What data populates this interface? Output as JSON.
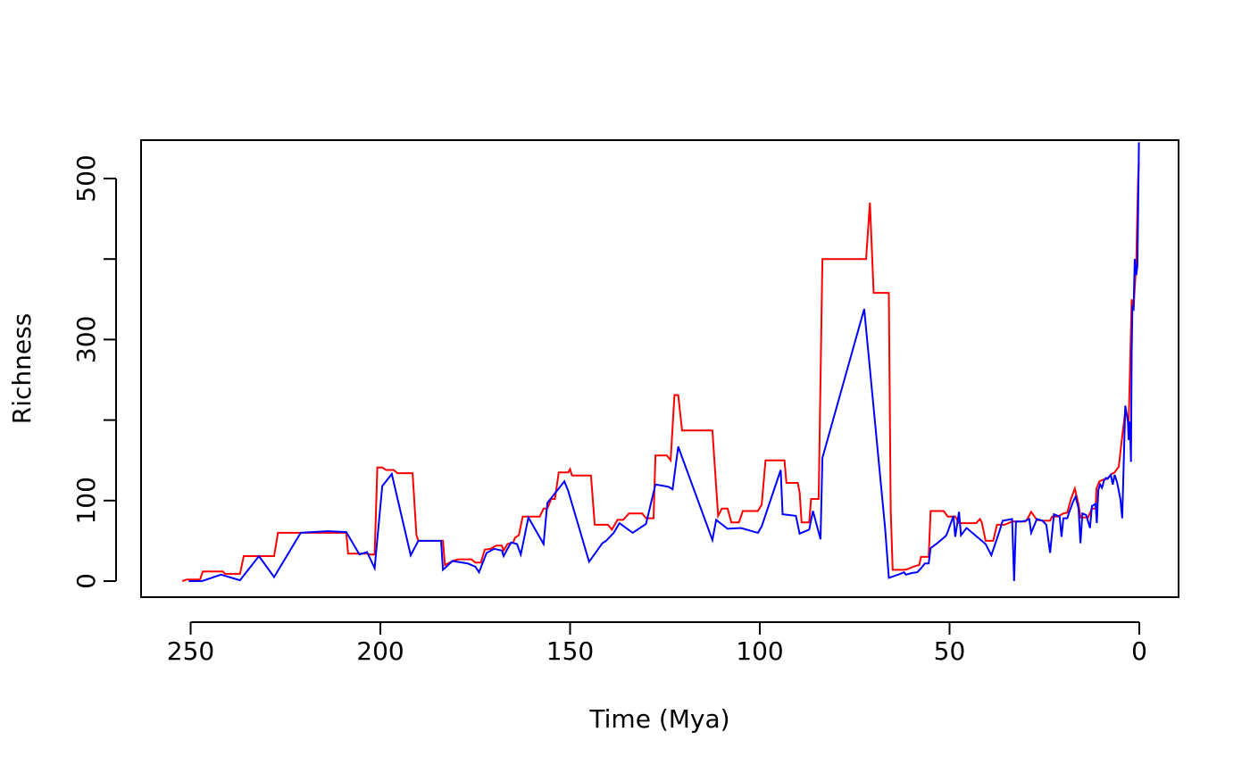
{
  "chart_data": {
    "type": "line",
    "title": "",
    "xlabel": "Time (Mya)",
    "ylabel": "Richness",
    "xlim": [
      252.2,
      0
    ],
    "ylim": [
      0,
      545
    ],
    "x_ticks": [
      250,
      200,
      150,
      100,
      50,
      0
    ],
    "x_tick_labels": [
      "250",
      "200",
      "150",
      "100",
      "50",
      "0"
    ],
    "y_ticks": [
      0,
      100,
      200,
      300,
      400,
      500
    ],
    "y_tick_labels": [
      "0",
      "100",
      "",
      "300",
      "",
      "500"
    ],
    "grid": false,
    "legend": "none",
    "colors": {
      "red": "#ff0000",
      "blue": "#0000ff",
      "axis": "#000000"
    },
    "series": [
      {
        "color": "#ff0000",
        "points": [
          [
            252.2,
            0
          ],
          [
            251,
            2
          ],
          [
            247.5,
            2
          ],
          [
            246.8,
            12
          ],
          [
            241.5,
            12
          ],
          [
            241,
            9
          ],
          [
            237,
            9
          ],
          [
            236,
            31
          ],
          [
            228,
            31
          ],
          [
            227,
            60
          ],
          [
            209,
            60
          ],
          [
            208.5,
            34
          ],
          [
            203.5,
            34
          ],
          [
            202.5,
            33
          ],
          [
            201.5,
            33
          ],
          [
            200.8,
            141
          ],
          [
            199.5,
            141
          ],
          [
            198.5,
            138
          ],
          [
            196.5,
            138
          ],
          [
            195.5,
            134
          ],
          [
            191.5,
            134
          ],
          [
            190.5,
            57
          ],
          [
            190,
            50
          ],
          [
            183.5,
            50
          ],
          [
            183,
            20
          ],
          [
            181,
            25
          ],
          [
            179.5,
            27
          ],
          [
            176,
            27
          ],
          [
            175,
            23
          ],
          [
            173.5,
            23
          ],
          [
            172.5,
            39
          ],
          [
            171,
            40
          ],
          [
            169.5,
            44
          ],
          [
            168,
            44
          ],
          [
            167.5,
            38
          ],
          [
            166.5,
            46
          ],
          [
            165,
            48
          ],
          [
            164.5,
            54
          ],
          [
            163.5,
            57
          ],
          [
            162.5,
            80
          ],
          [
            159.5,
            80
          ],
          [
            158,
            80
          ],
          [
            157,
            90
          ],
          [
            156,
            90
          ],
          [
            155,
            102
          ],
          [
            154,
            102
          ],
          [
            153,
            135
          ],
          [
            150.5,
            135
          ],
          [
            150,
            139
          ],
          [
            149.5,
            131
          ],
          [
            144.5,
            131
          ],
          [
            143.5,
            70
          ],
          [
            140,
            70
          ],
          [
            139,
            64
          ],
          [
            137.5,
            76
          ],
          [
            136,
            76
          ],
          [
            134.5,
            84
          ],
          [
            131,
            84
          ],
          [
            130,
            78
          ],
          [
            128,
            78
          ],
          [
            127.5,
            156
          ],
          [
            124.5,
            156
          ],
          [
            123.5,
            150
          ],
          [
            122.5,
            231
          ],
          [
            121.5,
            231
          ],
          [
            120.5,
            187
          ],
          [
            112.5,
            187
          ],
          [
            111,
            81
          ],
          [
            110,
            90
          ],
          [
            108.5,
            90
          ],
          [
            107.5,
            73
          ],
          [
            105.5,
            73
          ],
          [
            104.5,
            87
          ],
          [
            101,
            87
          ],
          [
            100.5,
            87
          ],
          [
            99.5,
            95
          ],
          [
            98.5,
            150
          ],
          [
            93.5,
            150
          ],
          [
            93,
            122
          ],
          [
            90,
            122
          ],
          [
            89.5,
            110
          ],
          [
            89,
            73
          ],
          [
            87,
            73
          ],
          [
            86.5,
            102
          ],
          [
            84.5,
            102
          ],
          [
            83.5,
            400
          ],
          [
            72,
            400
          ],
          [
            71,
            470
          ],
          [
            70,
            358
          ],
          [
            66,
            358
          ],
          [
            65.5,
            88
          ],
          [
            65,
            14
          ],
          [
            62,
            14
          ],
          [
            61,
            15
          ],
          [
            59.5,
            18
          ],
          [
            58,
            20
          ],
          [
            57.5,
            30
          ],
          [
            55.5,
            30
          ],
          [
            55,
            87
          ],
          [
            51.5,
            87
          ],
          [
            50.5,
            80
          ],
          [
            48.5,
            80
          ],
          [
            47.5,
            72
          ],
          [
            43,
            72
          ],
          [
            42,
            77
          ],
          [
            41.5,
            73
          ],
          [
            40.5,
            50
          ],
          [
            38.5,
            50
          ],
          [
            37.5,
            70
          ],
          [
            35.5,
            70
          ],
          [
            33.5,
            74
          ],
          [
            30,
            74
          ],
          [
            29.5,
            77
          ],
          [
            28.5,
            86
          ],
          [
            27,
            76
          ],
          [
            25.5,
            75
          ],
          [
            23.5,
            75
          ],
          [
            23,
            80
          ],
          [
            21.5,
            80
          ],
          [
            20,
            84
          ],
          [
            19,
            85
          ],
          [
            18,
            102
          ],
          [
            17,
            115
          ],
          [
            16,
            95
          ],
          [
            15.5,
            79
          ],
          [
            13.5,
            79
          ],
          [
            12.5,
            90
          ],
          [
            11.5,
            90
          ],
          [
            11.3,
            115
          ],
          [
            10.5,
            124
          ],
          [
            9.5,
            126
          ],
          [
            8.5,
            127
          ],
          [
            7.3,
            133
          ],
          [
            6.5,
            135
          ],
          [
            5.4,
            142
          ],
          [
            4.5,
            180
          ],
          [
            3.6,
            215
          ],
          [
            2.8,
            195
          ],
          [
            2,
            350
          ],
          [
            1.5,
            340
          ],
          [
            0.8,
            395
          ],
          [
            0.3,
            500
          ],
          [
            0.1,
            520
          ]
        ]
      },
      {
        "color": "#0000ff",
        "points": [
          [
            250.5,
            0
          ],
          [
            247,
            0
          ],
          [
            242,
            8
          ],
          [
            237,
            1
          ],
          [
            232,
            31
          ],
          [
            228,
            5
          ],
          [
            221,
            60
          ],
          [
            214,
            62
          ],
          [
            209,
            61
          ],
          [
            205.5,
            33
          ],
          [
            203.5,
            36
          ],
          [
            201.5,
            16
          ],
          [
            199.5,
            118
          ],
          [
            197,
            133
          ],
          [
            192,
            32
          ],
          [
            190,
            50
          ],
          [
            184,
            50
          ],
          [
            183.5,
            14
          ],
          [
            181,
            25
          ],
          [
            177,
            22
          ],
          [
            175,
            18
          ],
          [
            174,
            11
          ],
          [
            172,
            35
          ],
          [
            170,
            40
          ],
          [
            168,
            38
          ],
          [
            167.5,
            31
          ],
          [
            166.5,
            40
          ],
          [
            165.5,
            48
          ],
          [
            164,
            46
          ],
          [
            163,
            33
          ],
          [
            161,
            79
          ],
          [
            157,
            46
          ],
          [
            156,
            97
          ],
          [
            151.5,
            124
          ],
          [
            150.5,
            112
          ],
          [
            145,
            24
          ],
          [
            141.5,
            47
          ],
          [
            140.5,
            50
          ],
          [
            138.5,
            60
          ],
          [
            137,
            72
          ],
          [
            133.5,
            60
          ],
          [
            130,
            71
          ],
          [
            127.5,
            120
          ],
          [
            125,
            118
          ],
          [
            124,
            117
          ],
          [
            123,
            114
          ],
          [
            121.5,
            167
          ],
          [
            112.5,
            51
          ],
          [
            111.5,
            76
          ],
          [
            108.5,
            65
          ],
          [
            105,
            66
          ],
          [
            100.5,
            60
          ],
          [
            99.5,
            68
          ],
          [
            94.5,
            138
          ],
          [
            94,
            83
          ],
          [
            90.5,
            81
          ],
          [
            89.5,
            59
          ],
          [
            87,
            64
          ],
          [
            86,
            87
          ],
          [
            84,
            52
          ],
          [
            83.5,
            153
          ],
          [
            72.5,
            338
          ],
          [
            67,
            66
          ],
          [
            66,
            4
          ],
          [
            63,
            9
          ],
          [
            62,
            11
          ],
          [
            61.5,
            8
          ],
          [
            60,
            10
          ],
          [
            58.5,
            11
          ],
          [
            57.5,
            16
          ],
          [
            56.5,
            22
          ],
          [
            55.5,
            22
          ],
          [
            55,
            41
          ],
          [
            53.5,
            46
          ],
          [
            51,
            56
          ],
          [
            50.5,
            61
          ],
          [
            49,
            81
          ],
          [
            48.5,
            55
          ],
          [
            47.5,
            86
          ],
          [
            47,
            57
          ],
          [
            45.5,
            66
          ],
          [
            40.5,
            46
          ],
          [
            39,
            32
          ],
          [
            37,
            60
          ],
          [
            36,
            75
          ],
          [
            33.5,
            77
          ],
          [
            33,
            0
          ],
          [
            32.5,
            74
          ],
          [
            31,
            74
          ],
          [
            30,
            75
          ],
          [
            29,
            77
          ],
          [
            28.5,
            60
          ],
          [
            27,
            77
          ],
          [
            25.5,
            75
          ],
          [
            24.5,
            70
          ],
          [
            23.5,
            35
          ],
          [
            22.5,
            83
          ],
          [
            21,
            80
          ],
          [
            20.5,
            55
          ],
          [
            20,
            78
          ],
          [
            19,
            78
          ],
          [
            18.5,
            85
          ],
          [
            17.5,
            98
          ],
          [
            16.8,
            105
          ],
          [
            16,
            90
          ],
          [
            15.5,
            47
          ],
          [
            15,
            84
          ],
          [
            14,
            82
          ],
          [
            13,
            66
          ],
          [
            12.5,
            93
          ],
          [
            11.5,
            96
          ],
          [
            11.2,
            72
          ],
          [
            10.8,
            113
          ],
          [
            10.3,
            120
          ],
          [
            9.8,
            116
          ],
          [
            9.3,
            125
          ],
          [
            8.8,
            128
          ],
          [
            8.3,
            127
          ],
          [
            7.5,
            132
          ],
          [
            7,
            120
          ],
          [
            6.5,
            132
          ],
          [
            5.8,
            122
          ],
          [
            5,
            102
          ],
          [
            4.5,
            78
          ],
          [
            3.7,
            218
          ],
          [
            3,
            198
          ],
          [
            2.8,
            175
          ],
          [
            2.5,
            198
          ],
          [
            2.2,
            148
          ],
          [
            2,
            285
          ],
          [
            1.8,
            340
          ],
          [
            1.5,
            338
          ],
          [
            1.2,
            400
          ],
          [
            1,
            390
          ],
          [
            0.8,
            380
          ],
          [
            0.5,
            392
          ],
          [
            0.3,
            460
          ],
          [
            0.1,
            545
          ]
        ]
      }
    ]
  }
}
